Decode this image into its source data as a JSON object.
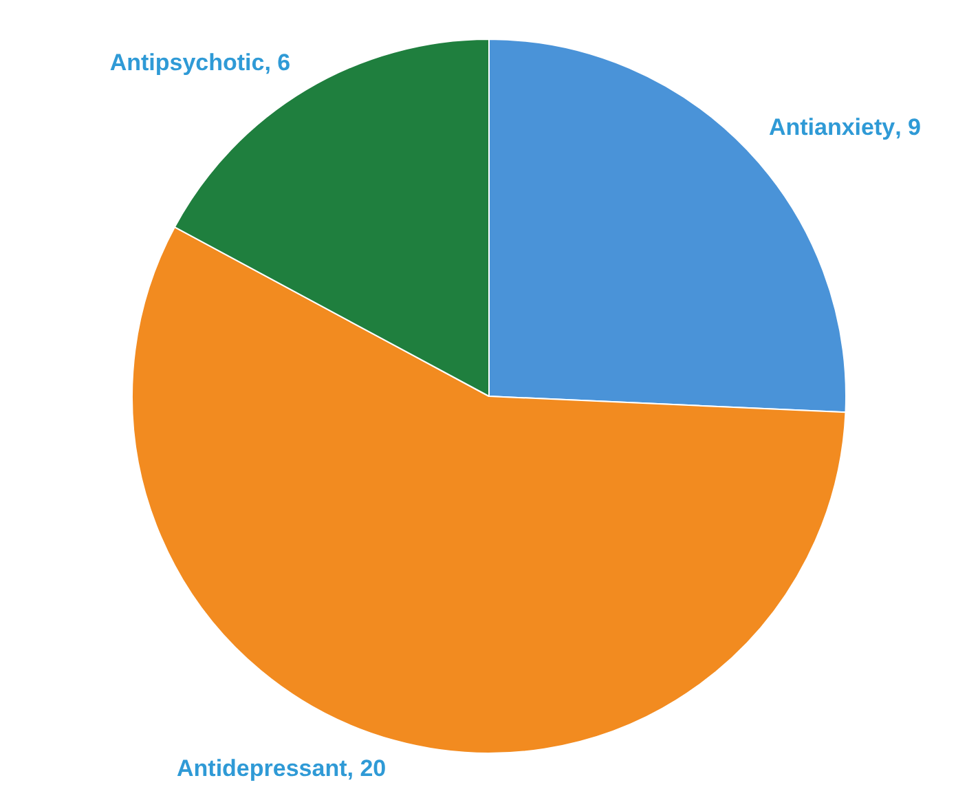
{
  "chart_data": {
    "type": "pie",
    "categories": [
      "Antianxiety",
      "Antidepressant",
      "Antipsychotic"
    ],
    "values": [
      9,
      20,
      6
    ],
    "colors": [
      "#4a93d8",
      "#f28b20",
      "#1f7f3e"
    ],
    "value_labels": [
      ", 9",
      ", 20",
      ", 6"
    ],
    "legend": false
  }
}
